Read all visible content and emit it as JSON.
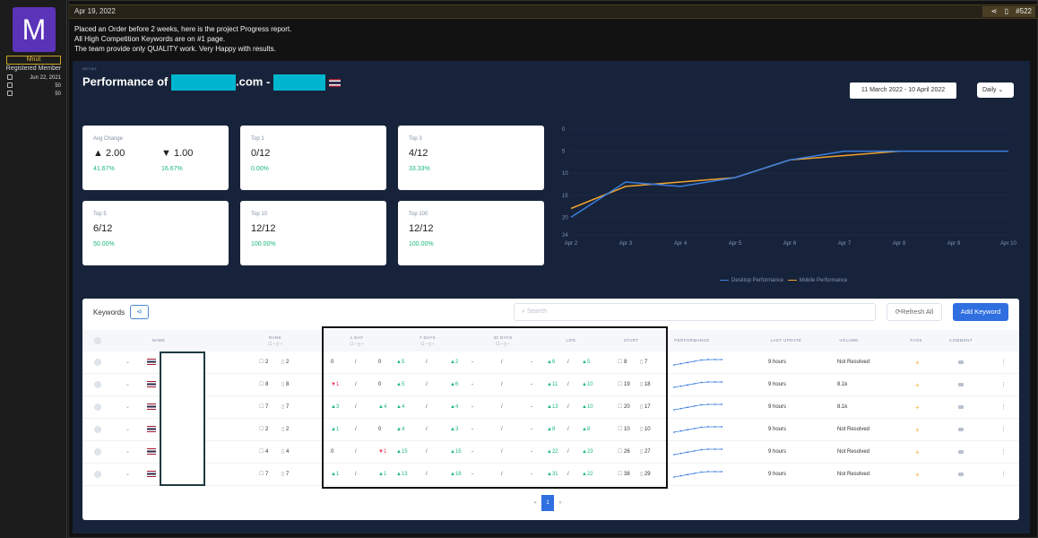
{
  "user": {
    "avatar_letter": "M",
    "name": "Mnut",
    "role": "Registered Member",
    "joined": "Jun 22, 2021",
    "messages": "50",
    "reactions": "50"
  },
  "post": {
    "date": "Apr 19, 2022",
    "number": "#522",
    "lines": [
      "Placed an Order before 2 weeks, here is the project Progress report.",
      "All High Competition Keywords are on #1 page.",
      "The team provide only QUALITY work. Very Happy with results."
    ]
  },
  "report": {
    "detail_label": "DETAIL",
    "title_prefix": "Performance of",
    "domain_suffix": ".com -",
    "date_range": "11 March 2022 - 10 April 2022",
    "period": "Daily",
    "kpis": {
      "avg_change": {
        "label": "Avg Change",
        "up": "2.00",
        "up_pct": "41.67%",
        "down": "1.00",
        "down_pct": "16.67%"
      },
      "top1": {
        "label": "Top 1",
        "value": "0/12",
        "pct": "0.00%"
      },
      "top3": {
        "label": "Top 3",
        "value": "4/12",
        "pct": "33.33%"
      },
      "top5": {
        "label": "Top 5",
        "value": "6/12",
        "pct": "50.00%"
      },
      "top10": {
        "label": "Top 10",
        "value": "12/12",
        "pct": "100.00%"
      },
      "top100": {
        "label": "Top 100",
        "value": "12/12",
        "pct": "100.00%"
      }
    }
  },
  "chart_data": {
    "type": "line",
    "categories": [
      "Apr 2",
      "Apr 3",
      "Apr 4",
      "Apr 5",
      "Apr 6",
      "Apr 7",
      "Apr 8",
      "Apr 9",
      "Apr 10"
    ],
    "y_ticks": [
      "0",
      "5",
      "10",
      "15",
      "20",
      "24"
    ],
    "ylim": [
      0,
      24
    ],
    "y_reversed": true,
    "series": [
      {
        "name": "Desktop Performance",
        "color": "#3b7fe0",
        "points": [
          [
            0,
            20
          ],
          [
            1,
            12
          ],
          [
            2,
            13
          ],
          [
            3,
            11
          ],
          [
            4,
            7
          ],
          [
            5,
            5
          ],
          [
            6,
            5
          ],
          [
            7,
            5
          ],
          [
            8,
            5
          ]
        ]
      },
      {
        "name": "Mobile Performance",
        "color": "#f0a22e",
        "points": [
          [
            0,
            18
          ],
          [
            1,
            13
          ],
          [
            2,
            12
          ],
          [
            3,
            11
          ],
          [
            4,
            7
          ],
          [
            5,
            6
          ],
          [
            6,
            5
          ]
        ]
      }
    ],
    "legend_position": "bottom"
  },
  "keywords": {
    "title": "Keywords",
    "search_placeholder": "Search",
    "refresh_label": "Refresh All",
    "add_label": "Add Keyword",
    "headers": {
      "name": "NAME",
      "rank": "RANK",
      "day1": "1 DAY",
      "day7": "7 DAYS",
      "day30": "30 DAYS",
      "life": "LIFE",
      "start": "START",
      "performance": "PERFORMANCE",
      "last_update": "LAST UPDATE",
      "volume": "VOLUME",
      "tags": "TAGS",
      "comment": "COMMENT",
      "sub": "☐ –  ▯ –"
    },
    "rows": [
      {
        "rank_d": "2",
        "rank_m": "2",
        "d1a": "0",
        "d1b": "0",
        "d7a": "▲5",
        "d7b": "▲2",
        "d30a": "-",
        "d30b": "-",
        "lifea": "▲6",
        "lifeb": "▲5",
        "start_d": "8",
        "start_m": "7",
        "updated": "9 hours",
        "volume": "Not Resolved"
      },
      {
        "rank_d": "8",
        "rank_m": "8",
        "d1a": "▼1",
        "d1b": "0",
        "d7a": "▲5",
        "d7b": "▲6",
        "d30a": "-",
        "d30b": "-",
        "lifea": "▲11",
        "lifeb": "▲10",
        "start_d": "19",
        "start_m": "18",
        "updated": "9 hours",
        "volume": "8.1k"
      },
      {
        "rank_d": "7",
        "rank_m": "7",
        "d1a": "▲3",
        "d1b": "▲4",
        "d7a": "▲4",
        "d7b": "▲4",
        "d30a": "-",
        "d30b": "-",
        "lifea": "▲13",
        "lifeb": "▲10",
        "start_d": "20",
        "start_m": "17",
        "updated": "9 hours",
        "volume": "8.1k"
      },
      {
        "rank_d": "2",
        "rank_m": "2",
        "d1a": "▲1",
        "d1b": "0",
        "d7a": "▲4",
        "d7b": "▲3",
        "d30a": "-",
        "d30b": "-",
        "lifea": "▲8",
        "lifeb": "▲8",
        "start_d": "10",
        "start_m": "10",
        "updated": "9 hours",
        "volume": "Not Resolved"
      },
      {
        "rank_d": "4",
        "rank_m": "4",
        "d1a": "0",
        "d1b": "▼1",
        "d7a": "▲15",
        "d7b": "▲15",
        "d30a": "-",
        "d30b": "-",
        "lifea": "▲22",
        "lifeb": "▲23",
        "start_d": "26",
        "start_m": "27",
        "updated": "9 hours",
        "volume": "Not Resolved"
      },
      {
        "rank_d": "7",
        "rank_m": "7",
        "d1a": "▲1",
        "d1b": "▲1",
        "d7a": "▲13",
        "d7b": "▲18",
        "d30a": "-",
        "d30b": "-",
        "lifea": "▲31",
        "lifeb": "▲22",
        "start_d": "38",
        "start_m": "29",
        "updated": "9 hours",
        "volume": "Not Resolved"
      }
    ]
  },
  "pager": {
    "prev": "«",
    "current": "1",
    "next": "»"
  }
}
